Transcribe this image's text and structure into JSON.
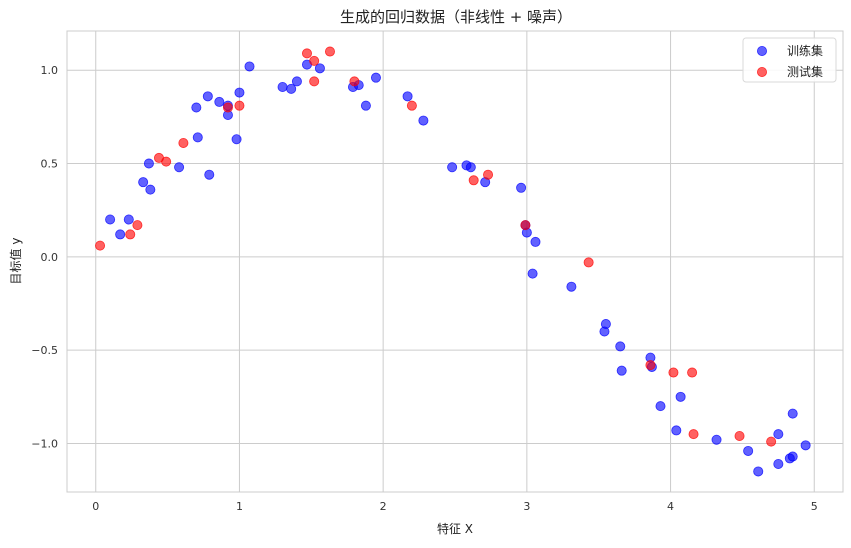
{
  "chart_data": {
    "type": "scatter",
    "title": "生成的回归数据（非线性 + 噪声）",
    "xlabel": "特征 X",
    "ylabel": "目标值 y",
    "xlim": [
      -0.2,
      5.2
    ],
    "ylim": [
      -1.26,
      1.21
    ],
    "xticks": [
      0,
      1,
      2,
      3,
      4,
      5
    ],
    "xtick_labels": [
      "0",
      "1",
      "2",
      "3",
      "4",
      "5"
    ],
    "yticks": [
      1.0,
      0.5,
      0.0,
      -0.5,
      -1.0
    ],
    "ytick_labels": [
      "1.0",
      "0.5",
      "0.0",
      "−0.5",
      "−1.0"
    ],
    "grid": true,
    "legend_position": "top-right",
    "series": [
      {
        "name": "训练集",
        "color": "#0000ff",
        "points": [
          [
            0.1,
            0.2
          ],
          [
            0.17,
            0.12
          ],
          [
            0.23,
            0.2
          ],
          [
            0.33,
            0.4
          ],
          [
            0.37,
            0.5
          ],
          [
            0.38,
            0.36
          ],
          [
            0.58,
            0.48
          ],
          [
            0.7,
            0.8
          ],
          [
            0.71,
            0.64
          ],
          [
            0.78,
            0.86
          ],
          [
            0.79,
            0.44
          ],
          [
            0.86,
            0.83
          ],
          [
            0.92,
            0.81
          ],
          [
            0.92,
            0.76
          ],
          [
            0.98,
            0.63
          ],
          [
            1.0,
            0.88
          ],
          [
            1.07,
            1.02
          ],
          [
            1.3,
            0.91
          ],
          [
            1.36,
            0.9
          ],
          [
            1.4,
            0.94
          ],
          [
            1.47,
            1.03
          ],
          [
            1.56,
            1.01
          ],
          [
            1.79,
            0.91
          ],
          [
            1.83,
            0.92
          ],
          [
            1.88,
            0.81
          ],
          [
            1.95,
            0.96
          ],
          [
            2.17,
            0.86
          ],
          [
            2.28,
            0.73
          ],
          [
            2.48,
            0.48
          ],
          [
            2.58,
            0.49
          ],
          [
            2.61,
            0.48
          ],
          [
            2.71,
            0.4
          ],
          [
            2.96,
            0.37
          ],
          [
            2.99,
            0.17
          ],
          [
            3.0,
            0.13
          ],
          [
            3.04,
            -0.09
          ],
          [
            3.06,
            0.08
          ],
          [
            3.31,
            -0.16
          ],
          [
            3.54,
            -0.4
          ],
          [
            3.55,
            -0.36
          ],
          [
            3.65,
            -0.48
          ],
          [
            3.66,
            -0.61
          ],
          [
            3.86,
            -0.54
          ],
          [
            3.87,
            -0.59
          ],
          [
            3.93,
            -0.8
          ],
          [
            4.04,
            -0.93
          ],
          [
            4.07,
            -0.75
          ],
          [
            4.32,
            -0.98
          ],
          [
            4.54,
            -1.04
          ],
          [
            4.61,
            -1.15
          ],
          [
            4.75,
            -1.11
          ],
          [
            4.75,
            -0.95
          ],
          [
            4.83,
            -1.08
          ],
          [
            4.85,
            -1.07
          ],
          [
            4.85,
            -0.84
          ],
          [
            4.94,
            -1.01
          ]
        ]
      },
      {
        "name": "测试集",
        "color": "#ff0000",
        "points": [
          [
            0.03,
            0.06
          ],
          [
            0.24,
            0.12
          ],
          [
            0.29,
            0.17
          ],
          [
            0.44,
            0.53
          ],
          [
            0.49,
            0.51
          ],
          [
            0.61,
            0.61
          ],
          [
            0.92,
            0.8
          ],
          [
            1.0,
            0.81
          ],
          [
            1.47,
            1.09
          ],
          [
            1.52,
            1.05
          ],
          [
            1.52,
            0.94
          ],
          [
            1.63,
            1.1
          ],
          [
            1.8,
            0.94
          ],
          [
            2.2,
            0.81
          ],
          [
            2.63,
            0.41
          ],
          [
            2.73,
            0.44
          ],
          [
            2.99,
            0.17
          ],
          [
            3.43,
            -0.03
          ],
          [
            3.86,
            -0.58
          ],
          [
            4.02,
            -0.62
          ],
          [
            4.15,
            -0.62
          ],
          [
            4.16,
            -0.95
          ],
          [
            4.48,
            -0.96
          ],
          [
            4.7,
            -0.99
          ]
        ]
      }
    ]
  }
}
